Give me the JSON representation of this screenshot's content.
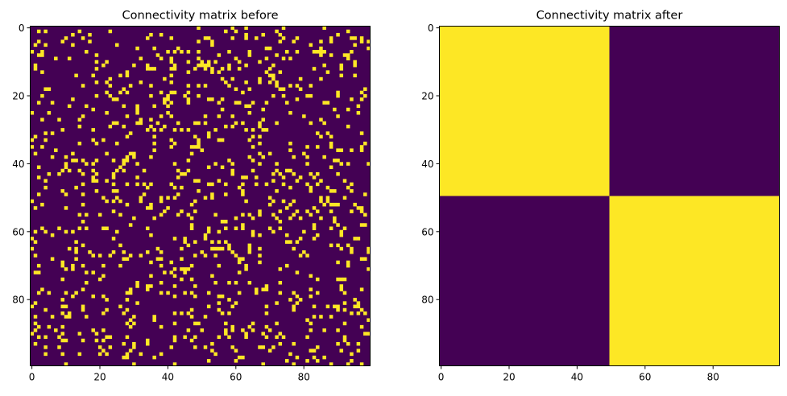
{
  "chart_data": [
    {
      "type": "heatmap",
      "title": "Connectivity matrix before",
      "rows": 100,
      "cols": 100,
      "values_description": "binary random connectivity, approx. 10% ones (exact cells not transcribed)",
      "fill_fraction": 0.1,
      "xticks": [
        0,
        20,
        40,
        60,
        80
      ],
      "yticks": [
        0,
        20,
        40,
        60,
        80
      ],
      "xlim": [
        -0.5,
        99.5
      ],
      "ylim": [
        99.5,
        -0.5
      ],
      "colormap": "viridis",
      "colors": {
        "low": "#440154",
        "high": "#fde725"
      }
    },
    {
      "type": "heatmap",
      "title": "Connectivity matrix after",
      "rows": 100,
      "cols": 100,
      "blocks": [
        {
          "rows": [
            0,
            49
          ],
          "cols": [
            0,
            49
          ],
          "value": 1
        },
        {
          "rows": [
            0,
            49
          ],
          "cols": [
            50,
            99
          ],
          "value": 0
        },
        {
          "rows": [
            50,
            99
          ],
          "cols": [
            0,
            49
          ],
          "value": 0
        },
        {
          "rows": [
            50,
            99
          ],
          "cols": [
            50,
            99
          ],
          "value": 1
        }
      ],
      "xticks": [
        0,
        20,
        40,
        60,
        80
      ],
      "yticks": [
        0,
        20,
        40,
        60,
        80
      ],
      "xlim": [
        -0.5,
        99.5
      ],
      "ylim": [
        99.5,
        -0.5
      ],
      "colormap": "viridis",
      "colors": {
        "low": "#440154",
        "high": "#fde725"
      }
    }
  ]
}
